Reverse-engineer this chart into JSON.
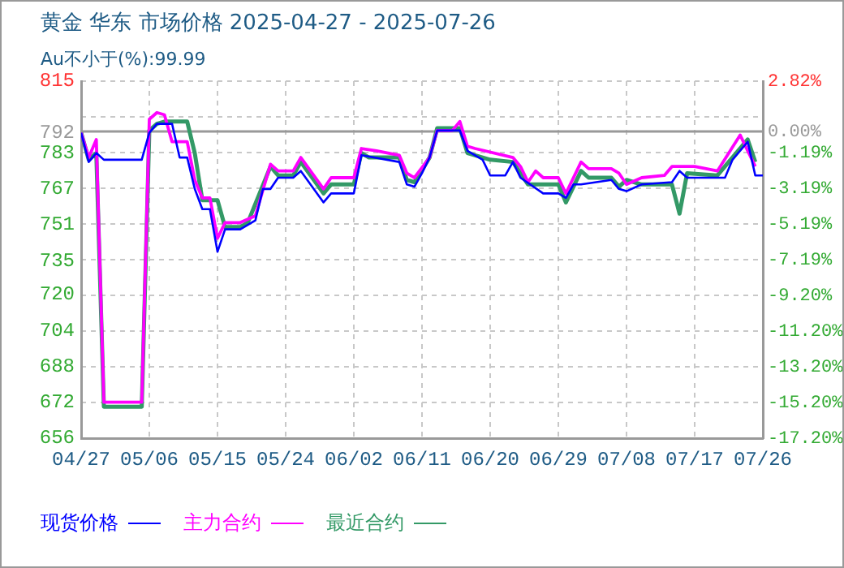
{
  "chart_data": {
    "type": "line",
    "title": "黄金 华东 市场价格 2025-04-27 - 2025-07-26",
    "subtitle": "Au不小于(%):99.99",
    "xlim": [
      "2025-04-27",
      "2025-07-26"
    ],
    "xticks": [
      {
        "value": "2025-04-27",
        "label": "04/27"
      },
      {
        "value": "2025-05-06",
        "label": "05/06"
      },
      {
        "value": "2025-05-15",
        "label": "05/15"
      },
      {
        "value": "2025-05-24",
        "label": "05/24"
      },
      {
        "value": "2025-06-02",
        "label": "06/02"
      },
      {
        "value": "2025-06-11",
        "label": "06/11"
      },
      {
        "value": "2025-06-20",
        "label": "06/20"
      },
      {
        "value": "2025-06-29",
        "label": "06/29"
      },
      {
        "value": "2025-07-08",
        "label": "07/08"
      },
      {
        "value": "2025-07-17",
        "label": "07/17"
      },
      {
        "value": "2025-07-26",
        "label": "07/26"
      }
    ],
    "ylim": [
      656,
      815
    ],
    "yticks": [
      656,
      672,
      688,
      704,
      720,
      735,
      751,
      767,
      783,
      792,
      815
    ],
    "y2lim": [
      -17.2,
      2.82
    ],
    "y2ticks": [
      {
        "value": -17.2,
        "label": "-17.20%"
      },
      {
        "value": -15.2,
        "label": "-15.20%"
      },
      {
        "value": -13.2,
        "label": "-13.20%"
      },
      {
        "value": -11.2,
        "label": "-11.20%"
      },
      {
        "value": -9.2,
        "label": "-9.20%"
      },
      {
        "value": -7.19,
        "label": "-7.19%"
      },
      {
        "value": -5.19,
        "label": "-5.19%"
      },
      {
        "value": -3.19,
        "label": "-3.19%"
      },
      {
        "value": -1.19,
        "label": "-1.19%"
      },
      {
        "value": 0,
        "label": "0.00%"
      },
      {
        "value": 0.81,
        "label": null
      },
      {
        "value": 2.82,
        "label": "2.82%"
      }
    ],
    "ref_lines": [
      {
        "axis": "y2",
        "value": 0,
        "color": "#999999"
      }
    ],
    "grid": true,
    "legend": "bottom",
    "series": [
      {
        "name": "现货价格",
        "color": "#0000ff",
        "x": [
          "2025-04-27",
          "2025-04-28",
          "2025-04-29",
          "2025-04-30",
          "2025-05-05",
          "2025-05-06",
          "2025-05-07",
          "2025-05-09",
          "2025-05-10",
          "2025-05-11",
          "2025-05-12",
          "2025-05-13",
          "2025-05-14",
          "2025-05-15",
          "2025-05-16",
          "2025-05-18",
          "2025-05-20",
          "2025-05-21",
          "2025-05-22",
          "2025-05-23",
          "2025-05-25",
          "2025-05-26",
          "2025-05-29",
          "2025-05-30",
          "2025-06-02",
          "2025-06-03",
          "2025-06-08",
          "2025-06-09",
          "2025-06-10",
          "2025-06-11",
          "2025-06-12",
          "2025-06-13",
          "2025-06-16",
          "2025-06-17",
          "2025-06-19",
          "2025-06-20",
          "2025-06-22",
          "2025-06-23",
          "2025-06-24",
          "2025-06-27",
          "2025-06-29",
          "2025-06-30",
          "2025-07-01",
          "2025-07-02",
          "2025-07-06",
          "2025-07-07",
          "2025-07-08",
          "2025-07-10",
          "2025-07-14",
          "2025-07-15",
          "2025-07-16",
          "2025-07-21",
          "2025-07-22",
          "2025-07-24",
          "2025-07-25",
          "2025-07-26"
        ],
        "values": [
          792,
          779,
          783,
          780,
          780,
          792,
          796,
          796,
          781,
          781,
          767,
          758,
          758,
          739,
          749,
          749,
          753,
          767,
          767,
          772,
          772,
          775,
          761,
          765,
          765,
          782,
          779,
          769,
          768,
          774,
          781,
          793,
          793,
          784,
          780,
          773,
          773,
          779,
          772,
          765,
          765,
          763,
          769,
          769,
          771,
          767,
          766,
          769,
          770,
          775,
          772,
          772,
          780,
          788,
          773,
          773
        ]
      },
      {
        "name": "主力合约",
        "color": "#ff00ff",
        "x": [
          "2025-04-27",
          "2025-04-28",
          "2025-04-29",
          "2025-04-30",
          "2025-05-05",
          "2025-05-06",
          "2025-05-07",
          "2025-05-08",
          "2025-05-09",
          "2025-05-11",
          "2025-05-12",
          "2025-05-13",
          "2025-05-14",
          "2025-05-15",
          "2025-05-16",
          "2025-05-18",
          "2025-05-20",
          "2025-05-22",
          "2025-05-23",
          "2025-05-25",
          "2025-05-26",
          "2025-05-29",
          "2025-05-30",
          "2025-06-02",
          "2025-06-03",
          "2025-06-05",
          "2025-06-08",
          "2025-06-09",
          "2025-06-10",
          "2025-06-12",
          "2025-06-13",
          "2025-06-15",
          "2025-06-16",
          "2025-06-17",
          "2025-06-18",
          "2025-06-23",
          "2025-06-24",
          "2025-06-25",
          "2025-06-26",
          "2025-06-27",
          "2025-06-29",
          "2025-06-30",
          "2025-07-02",
          "2025-07-03",
          "2025-07-06",
          "2025-07-07",
          "2025-07-08",
          "2025-07-10",
          "2025-07-13",
          "2025-07-14",
          "2025-07-17",
          "2025-07-20",
          "2025-07-23",
          "2025-07-25"
        ],
        "values": [
          792,
          781,
          789,
          672,
          672,
          798,
          801,
          800,
          788,
          788,
          771,
          763,
          763,
          745,
          752,
          752,
          755,
          778,
          775,
          775,
          781,
          767,
          772,
          772,
          785,
          784,
          782,
          774,
          772,
          781,
          793,
          793,
          797,
          786,
          785,
          781,
          777,
          770,
          775,
          772,
          772,
          765,
          779,
          776,
          776,
          774,
          769,
          772,
          773,
          777,
          777,
          775,
          791,
          777
        ]
      },
      {
        "name": "最近合约",
        "color": "#339966",
        "x": [
          "2025-04-27",
          "2025-04-28",
          "2025-04-29",
          "2025-04-30",
          "2025-05-05",
          "2025-05-06",
          "2025-05-07",
          "2025-05-08",
          "2025-05-11",
          "2025-05-12",
          "2025-05-13",
          "2025-05-15",
          "2025-05-16",
          "2025-05-18",
          "2025-05-19",
          "2025-05-22",
          "2025-05-23",
          "2025-05-25",
          "2025-05-26",
          "2025-05-29",
          "2025-05-30",
          "2025-06-02",
          "2025-06-03",
          "2025-06-04",
          "2025-06-08",
          "2025-06-09",
          "2025-06-10",
          "2025-06-12",
          "2025-06-13",
          "2025-06-16",
          "2025-06-17",
          "2025-06-18",
          "2025-06-20",
          "2025-06-23",
          "2025-06-25",
          "2025-06-27",
          "2025-06-29",
          "2025-06-30",
          "2025-07-02",
          "2025-07-03",
          "2025-07-06",
          "2025-07-07",
          "2025-07-08",
          "2025-07-10",
          "2025-07-14",
          "2025-07-15",
          "2025-07-16",
          "2025-07-20",
          "2025-07-24",
          "2025-07-25"
        ],
        "values": [
          792,
          780,
          783,
          670,
          670,
          793,
          796,
          797,
          797,
          783,
          762,
          762,
          750,
          750,
          752,
          777,
          773,
          773,
          779,
          765,
          769,
          769,
          783,
          781,
          781,
          771,
          770,
          781,
          794,
          794,
          783,
          782,
          780,
          779,
          769,
          769,
          769,
          761,
          775,
          772,
          772,
          768,
          771,
          769,
          769,
          756,
          774,
          773,
          789,
          779
        ]
      }
    ]
  }
}
